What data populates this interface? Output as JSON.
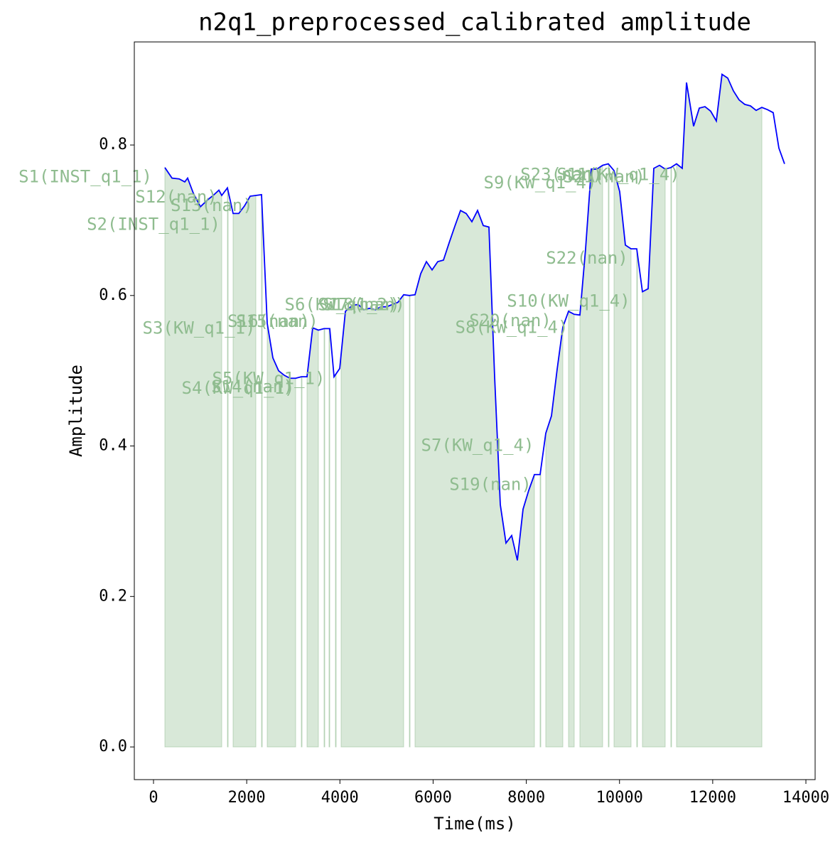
{
  "chart_data": {
    "type": "line",
    "title": "n2q1_preprocessed_calibrated amplitude",
    "x_label": "Time(ms)",
    "y_label": "Amplitude",
    "x": [
      244,
      397,
      549,
      671,
      732,
      854,
      1007,
      1159,
      1281,
      1403,
      1464,
      1586,
      1708,
      1830,
      1952,
      2074,
      2196,
      2318,
      2440,
      2562,
      2684,
      2806,
      2928,
      3050,
      3172,
      3294,
      3416,
      3538,
      3660,
      3782,
      3874,
      3996,
      4118,
      4270,
      4392,
      4514,
      4636,
      4758,
      4880,
      5002,
      5124,
      5246,
      5368,
      5490,
      5612,
      5734,
      5856,
      5978,
      6100,
      6222,
      6344,
      6466,
      6588,
      6710,
      6832,
      6954,
      7076,
      7198,
      7320,
      7442,
      7564,
      7686,
      7808,
      7930,
      8052,
      8174,
      8296,
      8418,
      8540,
      8662,
      8784,
      8906,
      9028,
      9150,
      9272,
      9394,
      9516,
      9638,
      9760,
      9882,
      10004,
      10126,
      10248,
      10370,
      10492,
      10614,
      10736,
      10858,
      10980,
      11102,
      11224,
      11346,
      11438,
      11590,
      11712,
      11834,
      11956,
      12078,
      12200,
      12322,
      12444,
      12566,
      12688,
      12810,
      12932,
      13054,
      13176,
      13298,
      13420,
      13542
    ],
    "series": [
      {
        "name": "amplitude",
        "color": "#0000ff",
        "values": [
          0.77,
          0.756,
          0.755,
          0.751,
          0.756,
          0.736,
          0.718,
          0.727,
          0.733,
          0.74,
          0.733,
          0.743,
          0.709,
          0.709,
          0.719,
          0.732,
          0.733,
          0.734,
          0.563,
          0.517,
          0.5,
          0.494,
          0.49,
          0.49,
          0.492,
          0.492,
          0.557,
          0.554,
          0.556,
          0.556,
          0.492,
          0.503,
          0.579,
          0.587,
          0.588,
          0.581,
          0.583,
          0.581,
          0.585,
          0.585,
          0.588,
          0.591,
          0.601,
          0.6,
          0.601,
          0.629,
          0.645,
          0.634,
          0.645,
          0.647,
          0.67,
          0.692,
          0.713,
          0.709,
          0.698,
          0.713,
          0.693,
          0.691,
          0.492,
          0.322,
          0.271,
          0.281,
          0.248,
          0.316,
          0.341,
          0.362,
          0.362,
          0.417,
          0.44,
          0.502,
          0.558,
          0.579,
          0.575,
          0.574,
          0.662,
          0.768,
          0.768,
          0.773,
          0.775,
          0.766,
          0.738,
          0.667,
          0.662,
          0.662,
          0.605,
          0.609,
          0.769,
          0.773,
          0.768,
          0.77,
          0.775,
          0.769,
          0.883,
          0.825,
          0.849,
          0.851,
          0.845,
          0.832,
          0.894,
          0.889,
          0.872,
          0.86,
          0.854,
          0.852,
          0.846,
          0.85,
          0.847,
          0.843,
          0.796,
          0.775
        ]
      }
    ],
    "segments": [
      [
        244,
        1464
      ],
      [
        1586,
        1601
      ],
      [
        1708,
        2196
      ],
      [
        2318,
        2333
      ],
      [
        2440,
        3050
      ],
      [
        3172,
        3187
      ],
      [
        3294,
        3538
      ],
      [
        3660,
        3675
      ],
      [
        3767,
        3782
      ],
      [
        3904,
        3919
      ],
      [
        4026,
        5368
      ],
      [
        5490,
        5505
      ],
      [
        5612,
        8174
      ],
      [
        8296,
        8311
      ],
      [
        8418,
        8784
      ],
      [
        8906,
        9028
      ],
      [
        9150,
        9638
      ],
      [
        9760,
        9775
      ],
      [
        9882,
        10248
      ],
      [
        10370,
        10385
      ],
      [
        10492,
        10980
      ],
      [
        11102,
        11117
      ],
      [
        11224,
        13055
      ]
    ],
    "segment_color": "#8fbc8f",
    "annotations": [
      {
        "text": "S1(INST_q1_1)",
        "x": -1464,
        "y": 0.757
      },
      {
        "text": "S12(nan)",
        "x": 488,
        "y": 0.73
      },
      {
        "text": "S13(nan)",
        "x": 1250,
        "y": 0.719
      },
      {
        "text": "S2(INST_q1_1)",
        "x": 0,
        "y": 0.694
      },
      {
        "text": "S3(KW_q1_1)",
        "x": 976,
        "y": 0.556
      },
      {
        "text": "S4(KW_q1_1)",
        "x": 1815,
        "y": 0.476
      },
      {
        "text": "S14(nan)",
        "x": 2120,
        "y": 0.478
      },
      {
        "text": "S5(KW_q1_1)",
        "x": 2470,
        "y": 0.489
      },
      {
        "text": "S16(nan)",
        "x": 2470,
        "y": 0.565
      },
      {
        "text": "S15(nan)",
        "x": 2654,
        "y": 0.565
      },
      {
        "text": "S6(KW_q1_2)",
        "x": 4026,
        "y": 0.587
      },
      {
        "text": "S17(nan)",
        "x": 4407,
        "y": 0.587
      },
      {
        "text": "S18(nan)",
        "x": 4514,
        "y": 0.587
      },
      {
        "text": "S7(KW_q1_4)",
        "x": 6954,
        "y": 0.4
      },
      {
        "text": "S19(nan)",
        "x": 7229,
        "y": 0.348
      },
      {
        "text": "S20(nan)",
        "x": 7656,
        "y": 0.566
      },
      {
        "text": "S8(KW_q1_4)",
        "x": 7686,
        "y": 0.557
      },
      {
        "text": "S9(KW_q1_4)",
        "x": 8296,
        "y": 0.749
      },
      {
        "text": "S23(nan)",
        "x": 8754,
        "y": 0.76
      },
      {
        "text": "S10(KW_q1_4)",
        "x": 8906,
        "y": 0.592
      },
      {
        "text": "S22(nan)",
        "x": 9303,
        "y": 0.649
      },
      {
        "text": "S21(nan)",
        "x": 9669,
        "y": 0.757
      },
      {
        "text": "S11(KW_q1_4)",
        "x": 9974,
        "y": 0.76
      }
    ],
    "xlim": [
      -412,
      14198
    ],
    "ylim": [
      -0.0434,
      0.937
    ],
    "xticks": [
      0,
      2000,
      4000,
      6000,
      8000,
      10000,
      12000,
      14000
    ],
    "yticks": [
      {
        "value": 0,
        "label": "0.0"
      },
      0.2,
      0.4,
      0.6,
      0.8
    ],
    "grid": false
  }
}
